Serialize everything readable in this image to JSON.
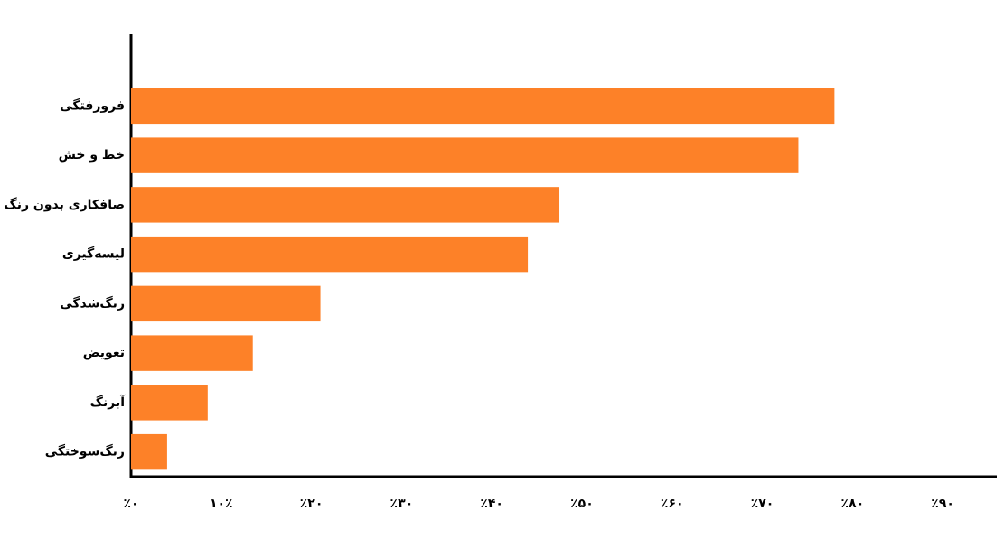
{
  "chart_data": {
    "type": "bar",
    "orientation": "horizontal",
    "categories": [
      "فرورفتگی",
      "خط و خش",
      "صافکاری بدون رنگ",
      "لیسه‌گیری",
      "رنگ‌شدگی",
      "تعویض",
      "آبرنگ",
      "رنگ‌سوختگی"
    ],
    "values": [
      78,
      74,
      47.5,
      44,
      21,
      13.5,
      8.5,
      4
    ],
    "color": "#fd8128",
    "xlim": [
      0,
      96
    ],
    "xticks": [
      {
        "value": 0,
        "label": "٪۰"
      },
      {
        "value": 10,
        "label": "۱۰٪"
      },
      {
        "value": 20,
        "label": "٪۲۰"
      },
      {
        "value": 30,
        "label": "٪۳۰"
      },
      {
        "value": 40,
        "label": "٪۴۰"
      },
      {
        "value": 50,
        "label": "٪۵۰"
      },
      {
        "value": 60,
        "label": "٪۶۰"
      },
      {
        "value": 70,
        "label": "٪۷۰"
      },
      {
        "value": 80,
        "label": "٪۸۰"
      },
      {
        "value": 90,
        "label": "٪۹۰"
      }
    ],
    "grid": false
  }
}
